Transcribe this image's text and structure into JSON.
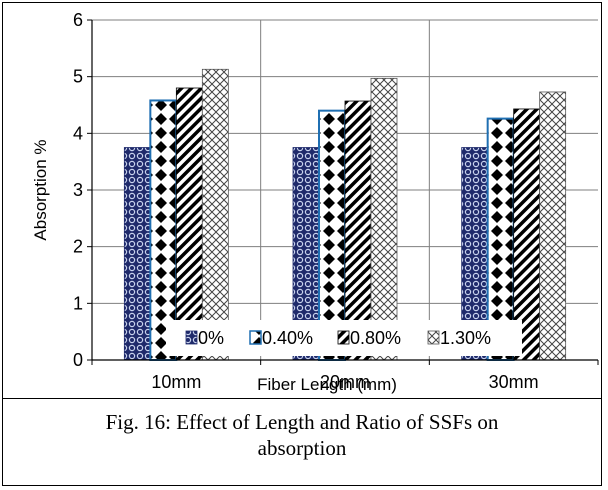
{
  "chart_data": {
    "type": "bar",
    "title": "",
    "xlabel": "Fiber Length (mm)",
    "ylabel": "Absorption %",
    "categories": [
      "10mm",
      "20mm",
      "30mm"
    ],
    "series": [
      {
        "name": "0%",
        "values": [
          3.75,
          3.75,
          3.75
        ],
        "pattern": "navy-dots"
      },
      {
        "name": "0.40%",
        "values": [
          4.58,
          4.4,
          4.26
        ],
        "pattern": "diamonds"
      },
      {
        "name": "0.80%",
        "values": [
          4.8,
          4.57,
          4.43
        ],
        "pattern": "diagonal-stripes"
      },
      {
        "name": "1.30%",
        "values": [
          5.13,
          4.97,
          4.73
        ],
        "pattern": "crosshatch"
      }
    ],
    "ylim": [
      0,
      6
    ],
    "yticks": [
      "0",
      "1",
      "2",
      "3",
      "4",
      "5",
      "6"
    ],
    "grid": true,
    "legend_position": "bottom-inside",
    "colors": {
      "navy": "#1f2a6b",
      "series2_border": "#1f6fb2",
      "grid": "#7f7f7f",
      "axis": "#000000"
    }
  },
  "caption": {
    "line1": "Fig. 16: Effect of Length and Ratio of SSFs on",
    "line2": "absorption"
  }
}
